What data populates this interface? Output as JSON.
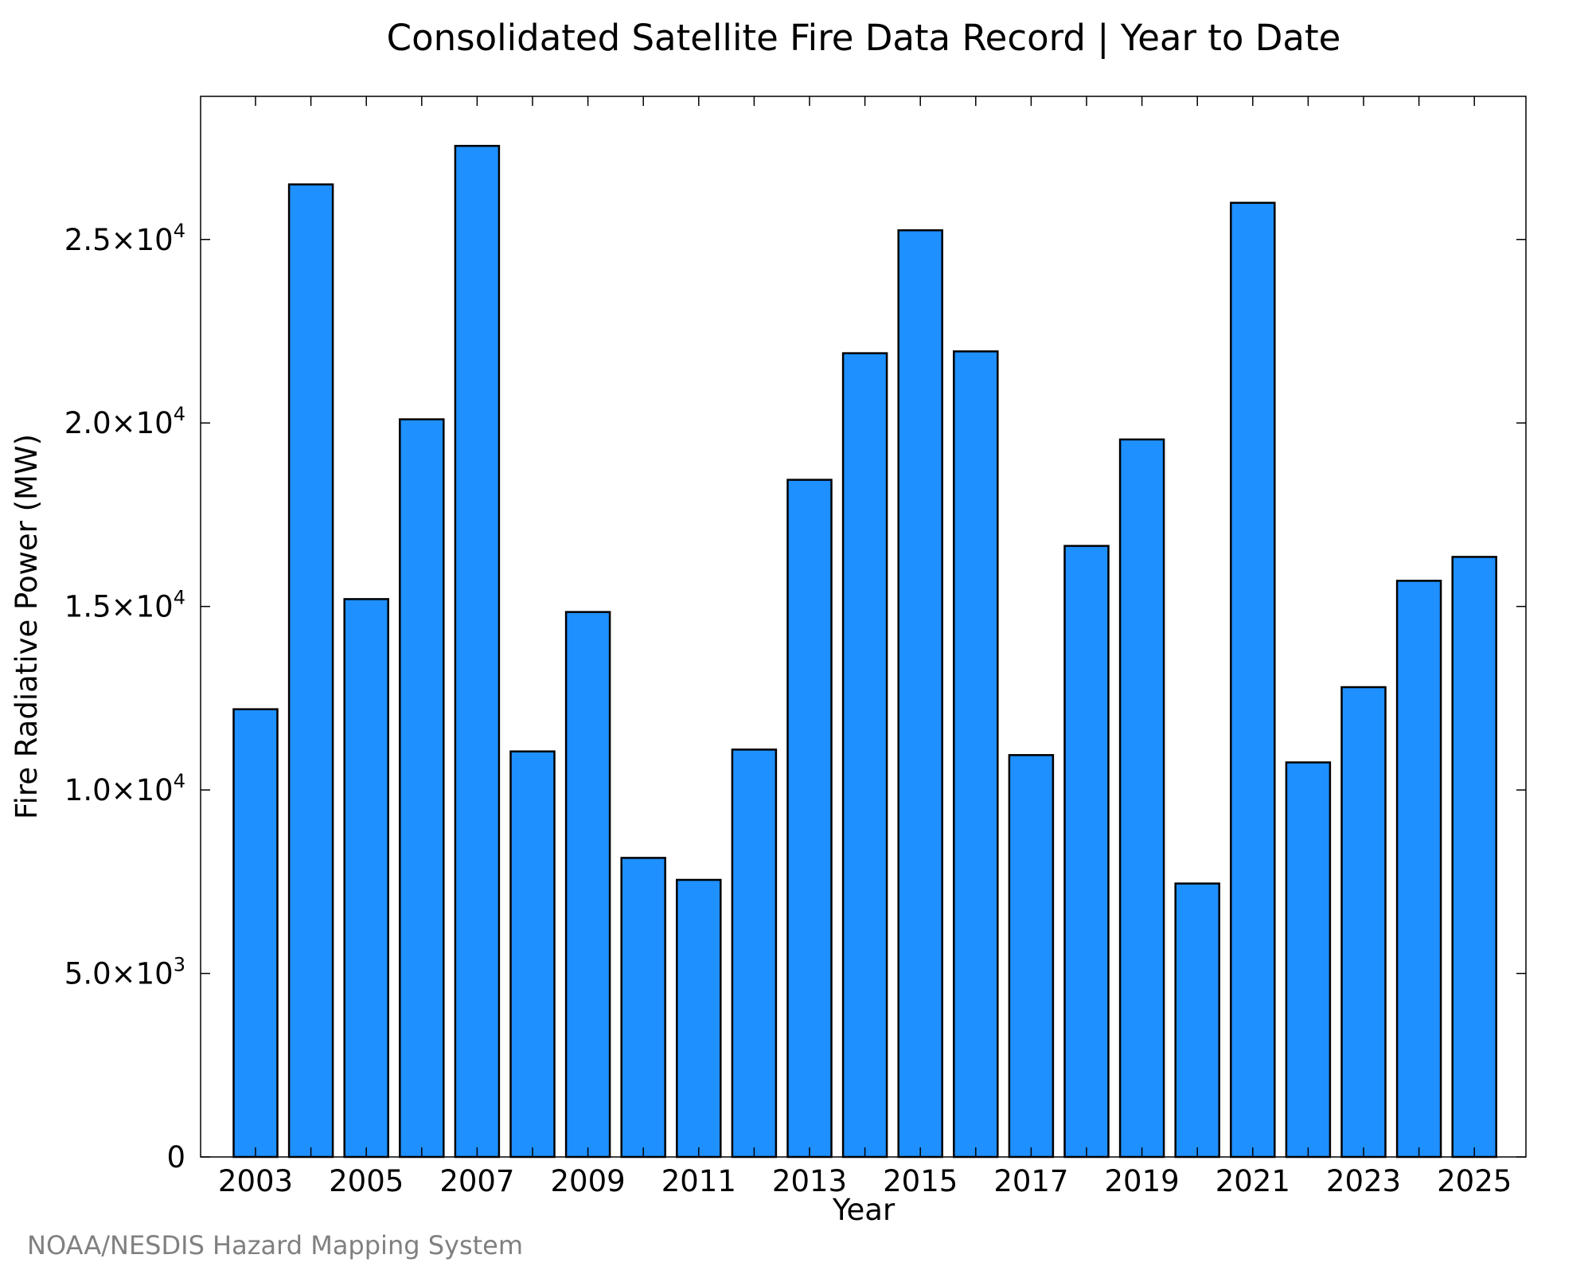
{
  "chart_data": {
    "type": "bar",
    "title": "Consolidated Satellite Fire Data Record | Year to Date",
    "xlabel": "Year",
    "ylabel": "Fire Radiative Power (MW)",
    "categories": [
      "2003",
      "2004",
      "2005",
      "2006",
      "2007",
      "2008",
      "2009",
      "2010",
      "2011",
      "2012",
      "2013",
      "2014",
      "2015",
      "2016",
      "2017",
      "2018",
      "2019",
      "2020",
      "2021",
      "2022",
      "2023",
      "2024",
      "2025"
    ],
    "values": [
      12200,
      26500,
      15200,
      20100,
      27550,
      11050,
      14850,
      8150,
      7550,
      11100,
      18450,
      21900,
      25250,
      21950,
      10950,
      16650,
      19550,
      7450,
      26000,
      10750,
      12800,
      15700,
      16350
    ],
    "ylim": [
      0,
      28900
    ],
    "x_ticks": [
      "2003",
      "2005",
      "2007",
      "2009",
      "2011",
      "2013",
      "2015",
      "2017",
      "2019",
      "2021",
      "2023",
      "2025"
    ],
    "y_ticks": [
      {
        "value": 0,
        "mantissa": "0",
        "exponent": ""
      },
      {
        "value": 5000,
        "mantissa": "5.0×10",
        "exponent": "3"
      },
      {
        "value": 10000,
        "mantissa": "1.0×10",
        "exponent": "4"
      },
      {
        "value": 15000,
        "mantissa": "1.5×10",
        "exponent": "4"
      },
      {
        "value": 20000,
        "mantissa": "2.0×10",
        "exponent": "4"
      },
      {
        "value": 25000,
        "mantissa": "2.5×10",
        "exponent": "4"
      }
    ],
    "grid": false,
    "bar_color": "#1e90ff",
    "bar_edge_color": "#000000",
    "credit": "NOAA/NESDIS Hazard Mapping System"
  }
}
